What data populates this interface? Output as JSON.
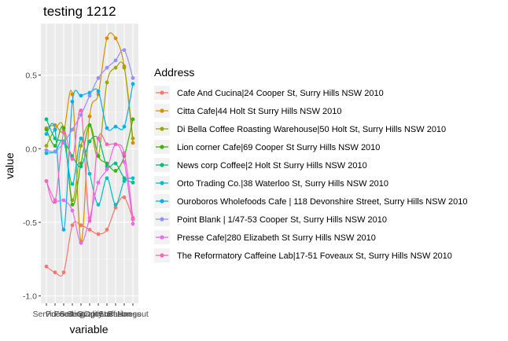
{
  "chart_data": {
    "type": "line",
    "title": "testing 1212",
    "xlabel": "variable",
    "ylabel": "value",
    "categories": [
      "Service",
      "Price",
      "Food",
      "Setting",
      "Seating",
      "Quality",
      "Options",
      "Staff",
      "Location",
      "Business",
      "Hangout"
    ],
    "category_tick_labels": [
      "Service",
      "Price",
      "Food",
      "Setting",
      "Seating",
      "Quality",
      "Options",
      "Staff",
      "Location",
      "Business",
      "Hangout"
    ],
    "ylim": [
      -1.05,
      0.85
    ],
    "yticks": [
      -1.0,
      -0.5,
      0.0,
      0.5
    ],
    "ytick_labels": [
      "-1.0",
      "-0.5",
      "0.0",
      "0.5"
    ],
    "grid": true,
    "panel_background": "#ebebeb",
    "legend": {
      "title": "Address",
      "position": "right"
    },
    "series": [
      {
        "name": "Cafe And Cucina|24 Cooper St, Surry Hills NSW 2010",
        "color": "#F8766D",
        "values": [
          -0.8,
          -0.84,
          -0.84,
          -0.52,
          -0.52,
          -0.55,
          -0.58,
          -0.55,
          -0.4,
          -0.33,
          -0.48
        ]
      },
      {
        "name": "Citta Cafe|44 Holt St Surry Hills NSW 2010",
        "color": "#D89000",
        "values": [
          0.14,
          0.16,
          0.12,
          0.37,
          -0.63,
          0.22,
          0.37,
          0.75,
          0.75,
          0.56,
          0.04
        ]
      },
      {
        "name": "Di Bella Coffee Roasting Warehouse|50 Holt St, Surry Hills NSW 2010",
        "color": "#A3A500",
        "values": [
          0.02,
          0.13,
          0.14,
          -0.35,
          0.02,
          0.16,
          -0.05,
          0.45,
          0.55,
          0.55,
          0.07
        ]
      },
      {
        "name": "Lion corner Cafe|69 Cooper St Surry Hills NSW 2010",
        "color": "#39B600",
        "values": [
          0.13,
          0.02,
          0.14,
          -0.38,
          -0.1,
          0.16,
          -0.05,
          -0.1,
          -0.15,
          -0.05,
          0.2
        ]
      },
      {
        "name": "News corp Coffee|2 Holt St Surry Hills NSW 2010",
        "color": "#00BF7D",
        "values": [
          0.2,
          0.07,
          0.05,
          -0.05,
          -0.12,
          0.05,
          0.07,
          -0.12,
          -0.1,
          -0.2,
          -0.23
        ]
      },
      {
        "name": "Orto Trading Co.|38 Waterloo St, Surry Hills NSW 2010",
        "color": "#00BFC4",
        "values": [
          -0.03,
          -0.02,
          0.05,
          -0.24,
          0.07,
          -0.17,
          -0.38,
          -0.2,
          -0.38,
          -0.22,
          -0.2
        ]
      },
      {
        "name": "Ouroboros Wholefoods Cafe | 118 Devonshire Street, Surry Hills NSW 2010",
        "color": "#00B0F6",
        "values": [
          0.1,
          0.13,
          -0.55,
          0.32,
          0.36,
          0.38,
          0.39,
          0.14,
          0.15,
          0.15,
          0.44
        ]
      },
      {
        "name": "Point Blank | 1/47-53 Cooper St, Surry Hills NSW 2010",
        "color": "#9590FF",
        "values": [
          -0.01,
          -0.02,
          0.04,
          0.13,
          0.23,
          0.36,
          0.48,
          0.55,
          0.6,
          0.67,
          0.48
        ]
      },
      {
        "name": "Presse Cafe|280 Elizabeth St Surry Hills NSW 2010",
        "color": "#E76BF3",
        "values": [
          -0.22,
          -0.35,
          -0.35,
          -0.42,
          -0.64,
          -0.47,
          -0.23,
          -0.14,
          0.03,
          -0.09,
          -0.51
        ]
      },
      {
        "name": "The Reformatory Caffeine Lab|17-51 Foveaux St, Surry Hills NSW 2010",
        "color": "#FF62BC",
        "values": [
          -0.22,
          -0.36,
          0.11,
          -0.07,
          0.26,
          -0.49,
          0.07,
          0.03,
          0.03,
          -0.03,
          -0.47
        ]
      }
    ]
  }
}
